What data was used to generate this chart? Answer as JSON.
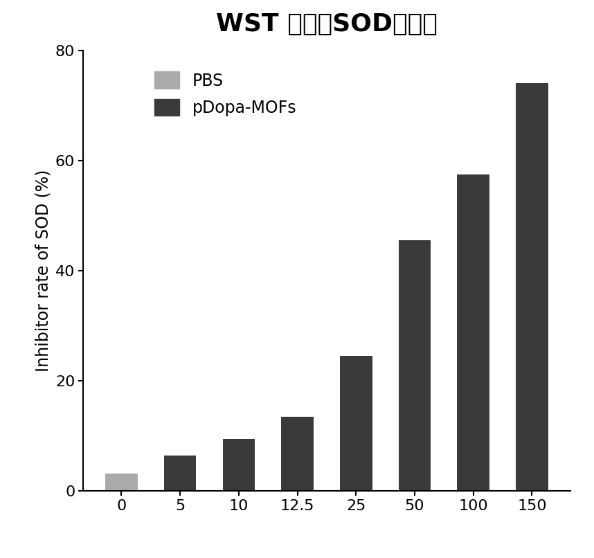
{
  "title": "WST 法检测SOD酶活性",
  "categories": [
    "0",
    "5",
    "10",
    "12.5",
    "25",
    "50",
    "100",
    "150"
  ],
  "values": [
    3.2,
    6.5,
    9.5,
    13.5,
    24.5,
    45.5,
    57.5,
    74.0
  ],
  "bar_colors": [
    "#aaaaaa",
    "#3a3a3a",
    "#3a3a3a",
    "#3a3a3a",
    "#3a3a3a",
    "#3a3a3a",
    "#3a3a3a",
    "#3a3a3a"
  ],
  "ylabel": "Inhibitor rate of SOD (%)",
  "ylim": [
    0,
    80
  ],
  "yticks": [
    0,
    20,
    40,
    60,
    80
  ],
  "legend_labels": [
    "PBS",
    "pDopa-MOFs"
  ],
  "legend_colors": [
    "#aaaaaa",
    "#3a3a3a"
  ],
  "title_fontsize": 26,
  "label_fontsize": 17,
  "tick_fontsize": 16,
  "legend_fontsize": 17,
  "background_color": "#ffffff",
  "bar_width": 0.55
}
